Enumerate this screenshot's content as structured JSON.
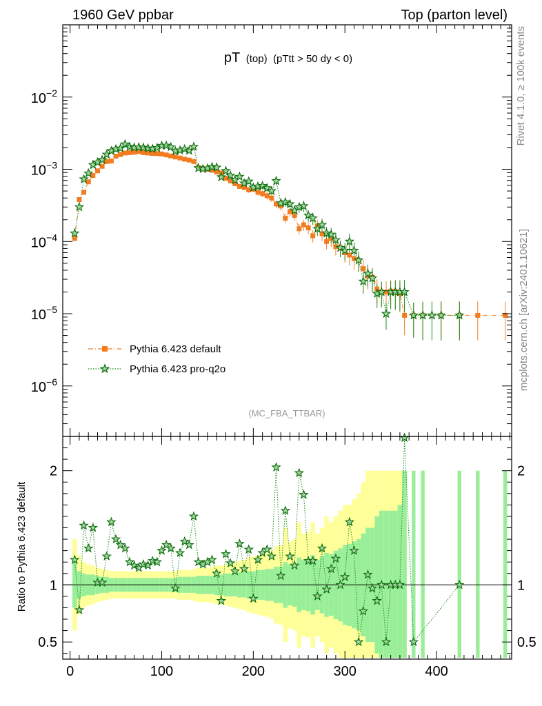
{
  "header": {
    "left": "1960 GeV ppbar",
    "right": "Top (parton level)"
  },
  "side": {
    "rivet": "Rivet 4.1.0, ≥ 100k events",
    "mcplots": "mcplots.cern.ch [arXiv:2401.10621]"
  },
  "chart_data": {
    "type": "scatter",
    "title": {
      "main": "pT",
      "sub1": "(top)",
      "sub2": "(pTtt > 50 dy < 0)"
    },
    "analysis_label": "(MC_FBA_TTBAR)",
    "x_ticks": [
      "0",
      "100",
      "200",
      "300",
      "400"
    ],
    "top_panel": {
      "yscale": "log",
      "ylim": [
        2e-07,
        0.1
      ],
      "y_ticks": [
        {
          "value": 0.01,
          "base": "10",
          "exp": "−2"
        },
        {
          "value": 0.001,
          "base": "10",
          "exp": "−3"
        },
        {
          "value": 0.0001,
          "base": "10",
          "exp": "−4"
        },
        {
          "value": 1e-05,
          "base": "10",
          "exp": "−5"
        },
        {
          "value": 1e-06,
          "base": "10",
          "exp": "−6"
        }
      ]
    },
    "ratio_panel": {
      "ylabel": "Ratio to Pythia 6.423 default",
      "ylim": [
        0.35,
        2.3
      ],
      "y_ticks": [
        "0.5",
        "1",
        "2"
      ]
    },
    "xlim": [
      -8,
      482
    ],
    "series": [
      {
        "name": "Pythia 6.423 default",
        "color": "#f47c20",
        "marker": "square",
        "line": "dash-dot",
        "x": [
          5,
          10,
          15,
          20,
          25,
          30,
          35,
          40,
          45,
          50,
          55,
          60,
          65,
          70,
          75,
          80,
          85,
          90,
          95,
          100,
          105,
          110,
          115,
          120,
          125,
          130,
          135,
          140,
          145,
          150,
          155,
          160,
          165,
          170,
          175,
          180,
          185,
          190,
          195,
          200,
          205,
          210,
          215,
          220,
          225,
          230,
          235,
          240,
          245,
          250,
          255,
          260,
          265,
          270,
          275,
          280,
          285,
          290,
          295,
          300,
          305,
          310,
          315,
          320,
          325,
          330,
          335,
          340,
          345,
          350,
          355,
          360,
          365,
          375,
          385,
          405,
          425,
          445,
          475
        ],
        "y": [
          0.00011,
          0.00038,
          0.00048,
          0.00067,
          0.00082,
          0.00095,
          0.0011,
          0.00128,
          0.0013,
          0.00152,
          0.0016,
          0.00168,
          0.0017,
          0.00172,
          0.00176,
          0.0017,
          0.00168,
          0.00166,
          0.00165,
          0.00163,
          0.00158,
          0.00153,
          0.00148,
          0.00143,
          0.00138,
          0.00134,
          0.00128,
          0.00105,
          0.00103,
          0.001,
          0.00097,
          0.00092,
          0.00089,
          0.00075,
          0.00069,
          0.00063,
          0.00058,
          0.00056,
          0.00052,
          0.00053,
          0.00048,
          0.00046,
          0.00043,
          0.0004,
          0.00033,
          0.00031,
          0.00021,
          0.00026,
          0.00023,
          0.00015,
          0.00017,
          0.000155,
          0.00012,
          0.000165,
          0.000128,
          0.0001,
          0.00011,
          8.5e-05,
          8.2e-05,
          7e-05,
          6.5e-05,
          5.8e-05,
          5.5e-05,
          4.2e-05,
          3.3e-05,
          3.2e-05,
          2.2e-05,
          2e-05,
          2e-05,
          2.05e-05,
          2.05e-05,
          1.9e-05,
          9.5e-06,
          9.5e-06,
          9.5e-06,
          9.5e-06,
          9.5e-06,
          9.5e-06,
          9.5e-06
        ]
      },
      {
        "name": "Pythia 6.423 pro-q2o",
        "color": "#1a8a1a",
        "marker": "star",
        "line": "dotted",
        "x": [
          5,
          10,
          15,
          20,
          25,
          30,
          35,
          40,
          45,
          50,
          55,
          60,
          65,
          70,
          75,
          80,
          85,
          90,
          95,
          100,
          105,
          110,
          115,
          120,
          125,
          130,
          135,
          140,
          145,
          150,
          155,
          160,
          165,
          170,
          175,
          180,
          185,
          190,
          195,
          200,
          205,
          210,
          215,
          220,
          225,
          230,
          235,
          240,
          245,
          250,
          255,
          260,
          265,
          270,
          275,
          280,
          285,
          290,
          295,
          300,
          305,
          310,
          315,
          320,
          325,
          330,
          335,
          340,
          345,
          350,
          355,
          360,
          365,
          375,
          385,
          395,
          405,
          425
        ],
        "y": [
          0.00013,
          0.0003,
          0.00073,
          0.00088,
          0.00115,
          0.00125,
          0.00135,
          0.0016,
          0.0018,
          0.0019,
          0.00195,
          0.00222,
          0.00205,
          0.002,
          0.00202,
          0.002,
          0.00195,
          0.00192,
          0.00198,
          0.00212,
          0.00213,
          0.00203,
          0.00178,
          0.00183,
          0.0019,
          0.00181,
          0.00205,
          0.00104,
          0.00101,
          0.00103,
          0.00108,
          0.00106,
          0.00078,
          0.00095,
          0.00082,
          0.00071,
          0.00079,
          0.00064,
          0.00068,
          0.00056,
          0.00058,
          0.00059,
          0.00055,
          0.0005,
          0.00069,
          0.00034,
          0.00035,
          0.00033,
          0.00027,
          0.0003,
          0.00031,
          0.00023,
          0.00021,
          0.00015,
          0.00017,
          0.00013,
          0.000125,
          0.000105,
          8.2e-05,
          7.5e-05,
          0.0001,
          7.5e-05,
          5.5e-05,
          2.8e-05,
          3.6e-05,
          3.1e-05,
          1.9e-05,
          2e-05,
          1e-05,
          2e-05,
          2e-05,
          2e-05,
          2e-05,
          9.5e-06,
          9.5e-06,
          9.5e-06,
          9.5e-06,
          9.5e-06
        ]
      }
    ],
    "ratio": {
      "x": [
        5,
        10,
        15,
        20,
        25,
        30,
        35,
        40,
        45,
        50,
        55,
        60,
        65,
        70,
        75,
        80,
        85,
        90,
        95,
        100,
        105,
        110,
        115,
        120,
        125,
        130,
        135,
        140,
        145,
        150,
        155,
        160,
        165,
        170,
        175,
        180,
        185,
        190,
        195,
        200,
        205,
        210,
        215,
        220,
        225,
        230,
        235,
        240,
        245,
        250,
        255,
        260,
        265,
        270,
        275,
        280,
        285,
        290,
        295,
        300,
        305,
        310,
        315,
        320,
        325,
        330,
        335,
        340,
        345,
        350,
        355,
        360,
        365,
        375,
        425
      ],
      "y": [
        1.22,
        0.78,
        1.52,
        1.32,
        1.5,
        1.02,
        1.02,
        1.25,
        1.55,
        1.4,
        1.35,
        1.32,
        1.2,
        1.17,
        1.15,
        1.18,
        1.17,
        1.21,
        1.2,
        1.3,
        1.35,
        1.32,
        0.97,
        1.28,
        1.38,
        1.35,
        1.6,
        1.2,
        1.18,
        1.2,
        1.22,
        1.1,
        0.86,
        1.27,
        1.19,
        1.12,
        1.36,
        1.14,
        1.31,
        0.88,
        1.22,
        1.28,
        1.31,
        1.25,
        2.03,
        1.08,
        1.65,
        1.25,
        1.17,
        1.98,
        1.79,
        1.21,
        1.21,
        0.9,
        1.32,
        0.96,
        1.14,
        1.23,
        1.0,
        1.07,
        1.55,
        1.3,
        0.5,
        0.77,
        1.09,
        0.97,
        0.86,
        1.0,
        0.5,
        1.0,
        1.0,
        1.0,
        2.3,
        0.5,
        1.0
      ]
    },
    "bands": {
      "x": [
        5,
        10,
        15,
        20,
        25,
        30,
        35,
        40,
        45,
        50,
        55,
        60,
        65,
        70,
        75,
        80,
        85,
        90,
        95,
        100,
        105,
        110,
        115,
        120,
        125,
        130,
        135,
        140,
        145,
        150,
        155,
        160,
        165,
        170,
        175,
        180,
        185,
        190,
        195,
        200,
        205,
        210,
        215,
        220,
        225,
        230,
        235,
        240,
        245,
        250,
        255,
        260,
        265,
        270,
        275,
        280,
        285,
        290,
        295,
        300,
        305,
        310,
        315,
        320,
        325,
        330,
        335,
        340,
        345,
        350,
        355,
        360,
        365,
        375,
        385,
        425,
        445,
        475
      ],
      "green": [
        0.2,
        0.12,
        0.1,
        0.09,
        0.09,
        0.08,
        0.07,
        0.07,
        0.06,
        0.06,
        0.06,
        0.06,
        0.06,
        0.06,
        0.06,
        0.06,
        0.06,
        0.06,
        0.06,
        0.06,
        0.06,
        0.06,
        0.06,
        0.07,
        0.07,
        0.07,
        0.07,
        0.08,
        0.08,
        0.08,
        0.08,
        0.09,
        0.09,
        0.1,
        0.1,
        0.1,
        0.11,
        0.11,
        0.12,
        0.12,
        0.13,
        0.13,
        0.14,
        0.14,
        0.16,
        0.16,
        0.2,
        0.18,
        0.19,
        0.24,
        0.22,
        0.23,
        0.26,
        0.22,
        0.25,
        0.28,
        0.27,
        0.3,
        0.32,
        0.35,
        0.36,
        0.38,
        0.4,
        0.45,
        0.5,
        0.5,
        0.6,
        0.65,
        0.65,
        0.65,
        0.65,
        0.7,
        1.0,
        1.0,
        1.0,
        1.0,
        1.0,
        1.0
      ],
      "yellow": [
        0.4,
        0.26,
        0.2,
        0.18,
        0.17,
        0.15,
        0.14,
        0.13,
        0.12,
        0.12,
        0.12,
        0.12,
        0.12,
        0.12,
        0.12,
        0.12,
        0.12,
        0.12,
        0.12,
        0.12,
        0.12,
        0.12,
        0.12,
        0.13,
        0.13,
        0.13,
        0.14,
        0.15,
        0.15,
        0.15,
        0.16,
        0.17,
        0.17,
        0.18,
        0.19,
        0.2,
        0.21,
        0.22,
        0.24,
        0.25,
        0.26,
        0.27,
        0.28,
        0.3,
        0.34,
        0.35,
        0.5,
        0.38,
        0.4,
        0.55,
        0.45,
        0.46,
        0.55,
        0.45,
        0.5,
        0.6,
        0.55,
        0.6,
        0.65,
        0.7,
        0.7,
        0.75,
        0.8,
        0.9,
        1.0,
        1.0,
        1.0,
        1.0,
        1.0,
        1.0,
        1.0,
        1.0,
        1.0,
        1.0,
        1.0,
        1.0,
        1.0,
        1.0
      ]
    }
  }
}
